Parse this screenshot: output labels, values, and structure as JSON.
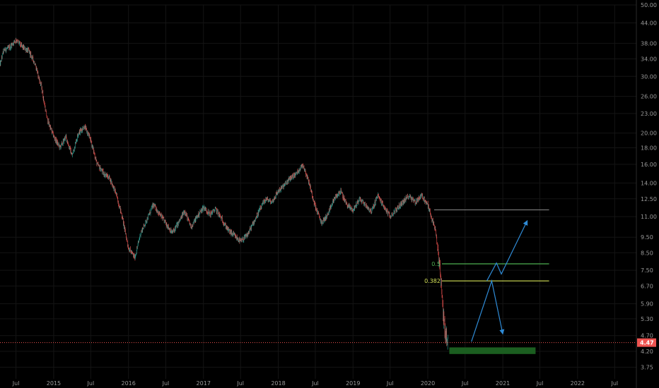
{
  "chart_data": {
    "type": "candlestick",
    "y_scale": "log",
    "ylim": [
      3.45,
      50.0
    ],
    "xlim": [
      "2014-04-14",
      "2022-10-15"
    ],
    "y_ticks": [
      "50.00",
      "44.00",
      "38.00",
      "34.00",
      "30.00",
      "26.00",
      "23.00",
      "20.00",
      "18.00",
      "16.00",
      "14.00",
      "12.50",
      "11.00",
      "9.50",
      "8.50",
      "7.50",
      "6.70",
      "5.90",
      "5.30",
      "4.70",
      "4.20",
      "3.75"
    ],
    "x_ticks": [
      {
        "label": "Jul",
        "date": "2014-07-01"
      },
      {
        "label": "2015",
        "date": "2015-01-01"
      },
      {
        "label": "Jul",
        "date": "2015-07-01"
      },
      {
        "label": "2016",
        "date": "2016-01-01"
      },
      {
        "label": "Jul",
        "date": "2016-07-01"
      },
      {
        "label": "2017",
        "date": "2017-01-01"
      },
      {
        "label": "Jul",
        "date": "2017-07-01"
      },
      {
        "label": "2018",
        "date": "2018-01-01"
      },
      {
        "label": "Jul",
        "date": "2018-07-01"
      },
      {
        "label": "2019",
        "date": "2019-01-01"
      },
      {
        "label": "Jul",
        "date": "2019-07-01"
      },
      {
        "label": "2020",
        "date": "2020-01-01"
      },
      {
        "label": "Jul",
        "date": "2020-07-01"
      },
      {
        "label": "2021",
        "date": "2021-01-01"
      },
      {
        "label": "Jul",
        "date": "2021-07-01"
      },
      {
        "label": "2022",
        "date": "2022-01-01"
      },
      {
        "label": "Jul",
        "date": "2022-07-01"
      }
    ],
    "price_path": [
      [
        "2014-04-14",
        32.5
      ],
      [
        "2014-05-01",
        36.0
      ],
      [
        "2014-06-01",
        37.0
      ],
      [
        "2014-07-01",
        39.0
      ],
      [
        "2014-08-01",
        37.0
      ],
      [
        "2014-09-01",
        36.0
      ],
      [
        "2014-10-01",
        33.0
      ],
      [
        "2014-11-01",
        28.0
      ],
      [
        "2014-12-01",
        22.0
      ],
      [
        "2015-01-01",
        19.5
      ],
      [
        "2015-02-01",
        18.0
      ],
      [
        "2015-03-01",
        19.5
      ],
      [
        "2015-04-01",
        17.0
      ],
      [
        "2015-05-01",
        20.0
      ],
      [
        "2015-06-01",
        21.0
      ],
      [
        "2015-07-01",
        19.0
      ],
      [
        "2015-08-01",
        16.0
      ],
      [
        "2015-09-01",
        15.0
      ],
      [
        "2015-10-01",
        14.5
      ],
      [
        "2015-11-01",
        13.0
      ],
      [
        "2015-12-01",
        11.0
      ],
      [
        "2016-01-01",
        8.8
      ],
      [
        "2016-02-01",
        8.2
      ],
      [
        "2016-03-01",
        9.8
      ],
      [
        "2016-04-01",
        10.8
      ],
      [
        "2016-05-01",
        12.0
      ],
      [
        "2016-06-01",
        11.2
      ],
      [
        "2016-07-01",
        10.5
      ],
      [
        "2016-08-01",
        9.8
      ],
      [
        "2016-09-01",
        10.5
      ],
      [
        "2016-10-01",
        11.5
      ],
      [
        "2016-11-01",
        10.2
      ],
      [
        "2016-12-01",
        11.0
      ],
      [
        "2017-01-01",
        11.8
      ],
      [
        "2017-02-01",
        11.2
      ],
      [
        "2017-03-01",
        11.6
      ],
      [
        "2017-04-01",
        10.8
      ],
      [
        "2017-05-01",
        10.0
      ],
      [
        "2017-06-01",
        9.6
      ],
      [
        "2017-07-01",
        9.2
      ],
      [
        "2017-08-01",
        9.6
      ],
      [
        "2017-09-01",
        10.5
      ],
      [
        "2017-10-01",
        11.5
      ],
      [
        "2017-11-01",
        12.5
      ],
      [
        "2017-12-01",
        12.2
      ],
      [
        "2018-01-01",
        13.2
      ],
      [
        "2018-02-01",
        13.8
      ],
      [
        "2018-03-01",
        14.5
      ],
      [
        "2018-04-01",
        15.0
      ],
      [
        "2018-05-01",
        16.0
      ],
      [
        "2018-06-01",
        14.0
      ],
      [
        "2018-07-01",
        11.8
      ],
      [
        "2018-08-01",
        10.5
      ],
      [
        "2018-09-01",
        11.2
      ],
      [
        "2018-10-01",
        12.5
      ],
      [
        "2018-11-01",
        13.2
      ],
      [
        "2018-12-01",
        12.0
      ],
      [
        "2019-01-01",
        11.5
      ],
      [
        "2019-02-01",
        12.5
      ],
      [
        "2019-03-01",
        12.0
      ],
      [
        "2019-04-01",
        11.4
      ],
      [
        "2019-05-01",
        12.8
      ],
      [
        "2019-06-01",
        11.8
      ],
      [
        "2019-07-01",
        11.0
      ],
      [
        "2019-08-01",
        11.6
      ],
      [
        "2019-09-01",
        12.2
      ],
      [
        "2019-10-01",
        12.8
      ],
      [
        "2019-11-01",
        12.2
      ],
      [
        "2019-12-01",
        12.8
      ],
      [
        "2020-01-01",
        12.0
      ],
      [
        "2020-01-20",
        10.8
      ],
      [
        "2020-02-05",
        10.2
      ],
      [
        "2020-02-20",
        8.6
      ],
      [
        "2020-03-05",
        6.9
      ],
      [
        "2020-03-15",
        5.6
      ],
      [
        "2020-03-25",
        4.9
      ],
      [
        "2020-04-08",
        4.47
      ]
    ],
    "current_price": 4.47,
    "current_price_label": "4.47",
    "fib_levels": [
      {
        "label": "0.5",
        "value": 7.85,
        "color": "#4caf50"
      },
      {
        "label": "0.382",
        "value": 6.95,
        "color": "#d4e157"
      }
    ],
    "resistance_level": 11.55,
    "support_zone": [
      4.12,
      4.32
    ],
    "projection_down": [
      [
        "2020-08-01",
        4.5
      ],
      [
        "2020-11-08",
        6.95
      ],
      [
        "2021-01-01",
        4.75
      ]
    ],
    "projection_up": [
      [
        "2020-10-15",
        6.95
      ],
      [
        "2020-12-01",
        7.9
      ],
      [
        "2020-12-25",
        7.3
      ],
      [
        "2021-05-01",
        10.7
      ]
    ],
    "colors": {
      "background": "#000000",
      "grid": "#141414",
      "up": "#26a69a",
      "down": "#ef5350",
      "axis_text": "#9a9a9a",
      "current_price": "#ef5350",
      "resistance": "#8a8a8a",
      "support_zone": "#1b5e20",
      "projection": "#2f8bd6"
    }
  }
}
